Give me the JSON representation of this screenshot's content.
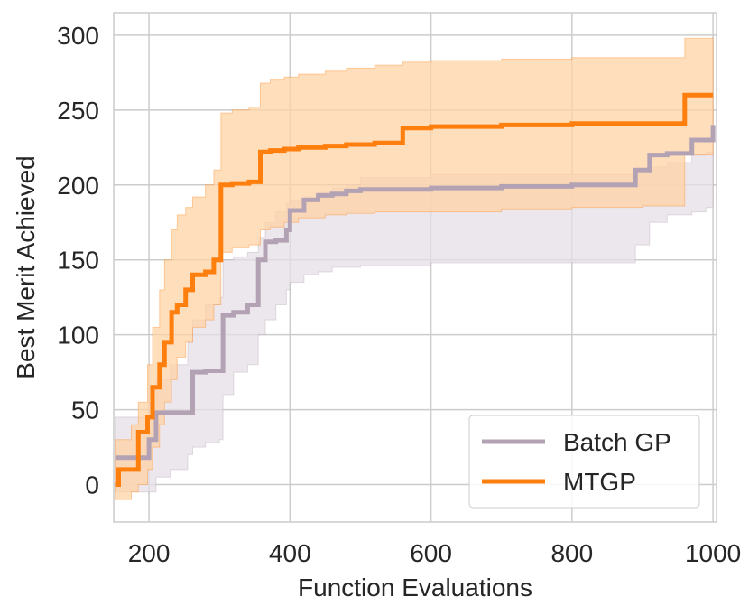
{
  "chart_data": {
    "type": "line",
    "title": "",
    "xlabel": "Function Evaluations",
    "ylabel": "Best Merit Achieved",
    "xlim": [
      150,
      1005
    ],
    "ylim": [
      -25,
      315
    ],
    "xticks": [
      200,
      400,
      600,
      800,
      1000
    ],
    "yticks": [
      0,
      50,
      100,
      150,
      200,
      250,
      300
    ],
    "xtick_labels": [
      "200",
      "400",
      "600",
      "800",
      "1000"
    ],
    "ytick_labels": [
      "0",
      "50",
      "100",
      "150",
      "200",
      "250",
      "300"
    ],
    "grid": true,
    "legend_position": "lower-right",
    "series": [
      {
        "name": "Batch GP",
        "color": "#b3a2b3",
        "band_color": "#e5dfe5",
        "step": true,
        "x": [
          152,
          165,
          200,
          210,
          230,
          255,
          262,
          280,
          300,
          305,
          320,
          340,
          355,
          365,
          380,
          395,
          400,
          420,
          440,
          460,
          480,
          500,
          600,
          700,
          800,
          880,
          890,
          910,
          935,
          955,
          970,
          990,
          1000
        ],
        "mean": [
          18,
          18,
          30,
          48,
          48,
          48,
          75,
          76,
          76,
          113,
          115,
          120,
          150,
          162,
          163,
          170,
          183,
          190,
          193,
          194,
          196,
          197,
          198,
          199,
          200,
          200,
          210,
          220,
          221,
          221,
          230,
          230,
          240
        ],
        "lower": [
          -5,
          -5,
          -5,
          5,
          10,
          20,
          25,
          28,
          30,
          60,
          75,
          80,
          100,
          110,
          120,
          130,
          135,
          140,
          142,
          145,
          145,
          146,
          148,
          148,
          148,
          148,
          160,
          175,
          180,
          180,
          182,
          185,
          195
        ],
        "upper": [
          45,
          45,
          55,
          70,
          80,
          95,
          110,
          120,
          125,
          150,
          152,
          155,
          165,
          175,
          182,
          188,
          190,
          192,
          195,
          198,
          200,
          205,
          207,
          207,
          207,
          207,
          210,
          212,
          215,
          215,
          220,
          222,
          222
        ]
      },
      {
        "name": "MTGP",
        "color": "#ff7f0e",
        "band_color": "#ffd3a5",
        "step": true,
        "x": [
          152,
          157,
          175,
          185,
          198,
          205,
          215,
          222,
          232,
          240,
          252,
          262,
          280,
          292,
          302,
          318,
          342,
          358,
          372,
          392,
          412,
          450,
          480,
          520,
          560,
          600,
          700,
          800,
          900,
          960,
          1000
        ],
        "mean": [
          0,
          10,
          10,
          35,
          45,
          65,
          80,
          95,
          115,
          120,
          130,
          140,
          142,
          150,
          200,
          201,
          202,
          222,
          223,
          224,
          225,
          226,
          227,
          228,
          238,
          239,
          240,
          241,
          241,
          260,
          260
        ],
        "lower": [
          -10,
          -10,
          -5,
          0,
          10,
          25,
          40,
          55,
          70,
          85,
          95,
          105,
          110,
          120,
          155,
          158,
          160,
          170,
          172,
          175,
          178,
          180,
          181,
          182,
          182,
          182,
          184,
          185,
          186,
          220,
          225
        ],
        "upper": [
          30,
          30,
          40,
          55,
          80,
          105,
          130,
          150,
          170,
          180,
          185,
          192,
          200,
          210,
          248,
          250,
          252,
          268,
          270,
          272,
          274,
          276,
          278,
          280,
          282,
          283,
          284,
          285,
          285,
          298,
          298
        ]
      }
    ]
  }
}
